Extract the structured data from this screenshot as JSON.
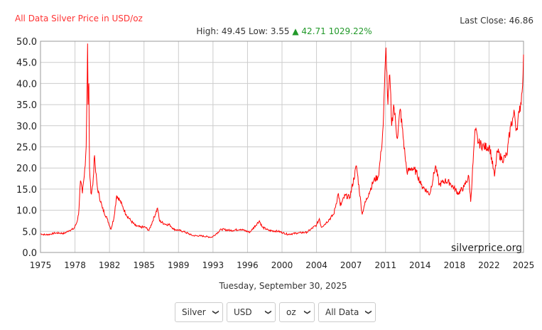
{
  "header": {
    "title": "All Data Silver Price in USD/oz",
    "last_close": "Last Close: 46.86",
    "high_low": "High: 49.45 Low: 3.55",
    "change_arrow": "▲",
    "change": "42.71 1029.22%"
  },
  "date": "Tuesday, September 30, 2025",
  "selects": [
    {
      "value": "Silver"
    },
    {
      "value": "USD"
    },
    {
      "value": "oz"
    },
    {
      "value": "All Data"
    }
  ],
  "watermark": "silverprice.org",
  "colors": {
    "line": "#ff0000",
    "grid": "#cccccc",
    "accent_up": "#22992a"
  },
  "chart_data": {
    "type": "line",
    "title": "All Data Silver Price in USD/oz",
    "xlabel": "",
    "ylabel": "",
    "xlim": [
      1975.0,
      2025.75
    ],
    "ylim": [
      0,
      50
    ],
    "xtick_labels": [
      "1975",
      "1978",
      "1982",
      "1985",
      "1989",
      "1993",
      "1996",
      "2000",
      "2004",
      "2007",
      "2011",
      "2014",
      "2018",
      "2022",
      "2025"
    ],
    "ytick_labels": [
      "0.0",
      "5.0",
      "10.0",
      "15.0",
      "20.0",
      "25.0",
      "30.0",
      "35.0",
      "40.0",
      "45.0",
      "50.0"
    ],
    "grid": true,
    "series": [
      {
        "name": "Silver USD/oz",
        "points": [
          [
            1975,
            4.4
          ],
          [
            1975.5,
            4.2
          ],
          [
            1976,
            4.3
          ],
          [
            1976.5,
            4.6
          ],
          [
            1977,
            4.6
          ],
          [
            1977.5,
            4.5
          ],
          [
            1978,
            5.2
          ],
          [
            1978.5,
            5.6
          ],
          [
            1978.8,
            7
          ],
          [
            1979.0,
            9
          ],
          [
            1979.2,
            17
          ],
          [
            1979.4,
            14
          ],
          [
            1979.6,
            18
          ],
          [
            1979.8,
            25
          ],
          [
            1979.95,
            49.45
          ],
          [
            1980.0,
            35
          ],
          [
            1980.08,
            40
          ],
          [
            1980.15,
            20
          ],
          [
            1980.3,
            14
          ],
          [
            1980.5,
            16
          ],
          [
            1980.68,
            23
          ],
          [
            1980.8,
            19
          ],
          [
            1981.0,
            15
          ],
          [
            1981.5,
            10.5
          ],
          [
            1982.0,
            8
          ],
          [
            1982.4,
            5.5
          ],
          [
            1982.7,
            8
          ],
          [
            1983.0,
            13.5
          ],
          [
            1983.3,
            12.5
          ],
          [
            1983.6,
            11
          ],
          [
            1984.0,
            9
          ],
          [
            1984.5,
            7.5
          ],
          [
            1985.0,
            6.3
          ],
          [
            1985.5,
            6
          ],
          [
            1986.0,
            6
          ],
          [
            1986.4,
            5.2
          ],
          [
            1987.3,
            10.5
          ],
          [
            1987.5,
            7.5
          ],
          [
            1988,
            6.8
          ],
          [
            1988.6,
            6.5
          ],
          [
            1989,
            5.5
          ],
          [
            1990,
            5
          ],
          [
            1991,
            4
          ],
          [
            1992,
            3.9
          ],
          [
            1993,
            3.6
          ],
          [
            1993.5,
            4.5
          ],
          [
            1994,
            5.5
          ],
          [
            1995,
            5.2
          ],
          [
            1996,
            5.5
          ],
          [
            1997,
            4.8
          ],
          [
            1998.0,
            7.5
          ],
          [
            1998.3,
            6
          ],
          [
            1999,
            5.2
          ],
          [
            2000,
            5
          ],
          [
            2001,
            4.3
          ],
          [
            2002,
            4.6
          ],
          [
            2003,
            4.8
          ],
          [
            2004,
            6.5
          ],
          [
            2004.3,
            8
          ],
          [
            2004.5,
            6
          ],
          [
            2005,
            7
          ],
          [
            2005.8,
            9
          ],
          [
            2006.3,
            14
          ],
          [
            2006.5,
            11
          ],
          [
            2007,
            13.5
          ],
          [
            2007.5,
            13
          ],
          [
            2008.2,
            20.5
          ],
          [
            2008.8,
            9
          ],
          [
            2009,
            11
          ],
          [
            2009.5,
            14
          ],
          [
            2010,
            17
          ],
          [
            2010.5,
            18
          ],
          [
            2010.8,
            24
          ],
          [
            2011.0,
            30
          ],
          [
            2011.3,
            48.5
          ],
          [
            2011.5,
            35
          ],
          [
            2011.7,
            42
          ],
          [
            2011.9,
            30
          ],
          [
            2012.1,
            35
          ],
          [
            2012.5,
            27
          ],
          [
            2012.8,
            34
          ],
          [
            2013.3,
            23
          ],
          [
            2013.5,
            19
          ],
          [
            2014,
            20
          ],
          [
            2014.5,
            19
          ],
          [
            2015,
            16
          ],
          [
            2015.9,
            13.8
          ],
          [
            2016.5,
            20.5
          ],
          [
            2016.9,
            16
          ],
          [
            2017.5,
            17
          ],
          [
            2018,
            16.5
          ],
          [
            2018.9,
            14
          ],
          [
            2019.5,
            15.5
          ],
          [
            2020.0,
            18
          ],
          [
            2020.2,
            12
          ],
          [
            2020.6,
            27
          ],
          [
            2020.7,
            29
          ],
          [
            2021,
            26
          ],
          [
            2021.6,
            25
          ],
          [
            2022.2,
            25
          ],
          [
            2022.7,
            18
          ],
          [
            2023.0,
            24
          ],
          [
            2023.5,
            22
          ],
          [
            2024.0,
            23
          ],
          [
            2024.4,
            30
          ],
          [
            2024.8,
            33
          ],
          [
            2025.0,
            29
          ],
          [
            2025.3,
            33
          ],
          [
            2025.6,
            38
          ],
          [
            2025.75,
            46.86
          ]
        ]
      }
    ]
  }
}
